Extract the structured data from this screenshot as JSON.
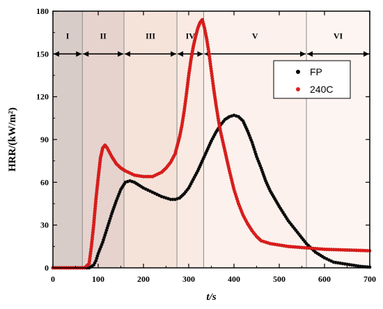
{
  "chart_data": {
    "type": "scatter",
    "xlabel": "t/s",
    "ylabel": "HRR/(kW/m²)",
    "xlim": [
      0,
      700
    ],
    "ylim": [
      0,
      180
    ],
    "x_ticks": [
      0,
      100,
      200,
      300,
      400,
      500,
      600,
      700
    ],
    "y_ticks": [
      0,
      30,
      60,
      90,
      120,
      150,
      180
    ],
    "legend_position": "upper-right",
    "region_arrows_y": 150,
    "regions": [
      {
        "label": "I",
        "start": 0,
        "end": 65,
        "color": "#d8ccc8"
      },
      {
        "label": "II",
        "start": 65,
        "end": 157,
        "color": "#e6d3ce"
      },
      {
        "label": "III",
        "start": 157,
        "end": 274,
        "color": "#f5e3da"
      },
      {
        "label": "IV",
        "start": 274,
        "end": 333,
        "color": "#faeae4"
      },
      {
        "label": "V",
        "start": 333,
        "end": 560,
        "color": "#fcf1ec"
      },
      {
        "label": "VI",
        "start": 560,
        "end": 700,
        "color": "#fdf5f1"
      }
    ],
    "series": [
      {
        "name": "FP",
        "color": "#000000",
        "x": [
          0,
          40,
          80,
          90,
          95,
          100,
          110,
          120,
          130,
          140,
          150,
          160,
          170,
          180,
          200,
          220,
          240,
          260,
          270,
          280,
          290,
          300,
          310,
          320,
          330,
          340,
          350,
          360,
          370,
          380,
          390,
          400,
          410,
          420,
          430,
          440,
          450,
          460,
          470,
          480,
          500,
          520,
          540,
          560,
          580,
          600,
          620,
          640,
          660,
          680,
          700
        ],
        "y": [
          0,
          0,
          0,
          2,
          5,
          10,
          18,
          28,
          38,
          47,
          55,
          60,
          61,
          60,
          56,
          53,
          50,
          48,
          48,
          49,
          52,
          56,
          62,
          68,
          75,
          82,
          89,
          95,
          100,
          104,
          106,
          107,
          106,
          103,
          96,
          88,
          78,
          70,
          61,
          54,
          43,
          33,
          25,
          17,
          11,
          7,
          4,
          3,
          2,
          1,
          0.5
        ]
      },
      {
        "name": "240C",
        "color": "#e0201e",
        "x": [
          0,
          40,
          70,
          80,
          85,
          90,
          95,
          100,
          105,
          110,
          115,
          120,
          130,
          140,
          150,
          160,
          180,
          200,
          220,
          240,
          250,
          260,
          265,
          270,
          275,
          280,
          285,
          290,
          295,
          300,
          305,
          310,
          315,
          320,
          325,
          330,
          335,
          340,
          345,
          350,
          355,
          360,
          365,
          370,
          380,
          390,
          400,
          410,
          420,
          430,
          440,
          450,
          460,
          480,
          500,
          520,
          560,
          600,
          650,
          700
        ],
        "y": [
          0,
          0,
          0,
          3,
          15,
          30,
          48,
          63,
          77,
          84,
          86,
          84,
          78,
          73,
          70,
          68,
          65,
          64,
          64,
          67,
          70,
          74,
          77,
          80,
          86,
          92,
          100,
          110,
          122,
          135,
          146,
          155,
          162,
          168,
          172,
          174,
          168,
          160,
          150,
          138,
          126,
          115,
          105,
          96,
          82,
          68,
          55,
          45,
          37,
          31,
          26,
          22,
          19,
          17,
          16,
          15,
          14,
          13,
          12.5,
          12
        ]
      }
    ]
  }
}
